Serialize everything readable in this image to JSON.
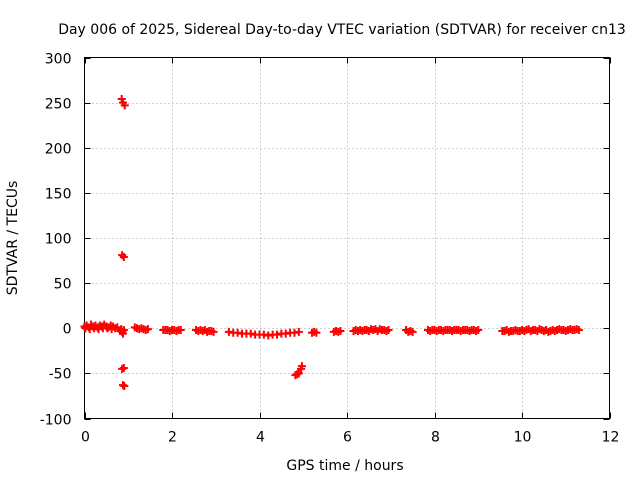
{
  "chart_data": {
    "type": "scatter",
    "title": "Day 006 of 2025, Sidereal Day-to-day VTEC variation (SDTVAR) for receiver cn13",
    "xlabel": "GPS time / hours",
    "ylabel": "SDTVAR / TECUs",
    "xlim": [
      0,
      12
    ],
    "ylim": [
      -100,
      300
    ],
    "xticks": [
      0,
      2,
      4,
      6,
      8,
      10,
      12
    ],
    "yticks": [
      -100,
      -50,
      0,
      50,
      100,
      150,
      200,
      250,
      300
    ],
    "grid": true,
    "marker": "plus",
    "series": [
      {
        "name": "SDTVAR",
        "color": "#ff0000",
        "points": [
          [
            0.0,
            2
          ],
          [
            0.05,
            3
          ],
          [
            0.1,
            1
          ],
          [
            0.15,
            4
          ],
          [
            0.2,
            2
          ],
          [
            0.25,
            3
          ],
          [
            0.3,
            1
          ],
          [
            0.35,
            3
          ],
          [
            0.4,
            2
          ],
          [
            0.45,
            4
          ],
          [
            0.5,
            2
          ],
          [
            0.55,
            1
          ],
          [
            0.6,
            3
          ],
          [
            0.65,
            2
          ],
          [
            0.7,
            0
          ],
          [
            0.75,
            1
          ],
          [
            0.02,
            0
          ],
          [
            0.12,
            -1
          ],
          [
            0.22,
            0
          ],
          [
            0.32,
            -1
          ],
          [
            0.42,
            0
          ],
          [
            0.52,
            0
          ],
          [
            0.62,
            -1
          ],
          [
            0.82,
            -3
          ],
          [
            0.86,
            -4
          ],
          [
            0.88,
            -6
          ],
          [
            0.84,
            -1
          ],
          [
            0.9,
            -2
          ],
          [
            0.85,
            254
          ],
          [
            0.88,
            250
          ],
          [
            0.92,
            247
          ],
          [
            0.86,
            81
          ],
          [
            0.9,
            79
          ],
          [
            0.86,
            -45
          ],
          [
            0.9,
            -44
          ],
          [
            0.88,
            -63
          ],
          [
            0.91,
            -64
          ],
          [
            1.15,
            1
          ],
          [
            1.2,
            0
          ],
          [
            1.25,
            -1
          ],
          [
            1.3,
            0
          ],
          [
            1.35,
            -1
          ],
          [
            1.4,
            -2
          ],
          [
            1.45,
            -1
          ],
          [
            1.8,
            -2
          ],
          [
            1.85,
            -2
          ],
          [
            1.9,
            -2
          ],
          [
            1.95,
            -3
          ],
          [
            2.0,
            -2
          ],
          [
            2.05,
            -2
          ],
          [
            2.1,
            -3
          ],
          [
            2.15,
            -2
          ],
          [
            2.2,
            -2
          ],
          [
            2.55,
            -2
          ],
          [
            2.6,
            -3
          ],
          [
            2.65,
            -2
          ],
          [
            2.7,
            -3
          ],
          [
            2.75,
            -2
          ],
          [
            2.8,
            -4
          ],
          [
            2.85,
            -3
          ],
          [
            2.9,
            -3
          ],
          [
            2.95,
            -4
          ],
          [
            3.3,
            -4
          ],
          [
            3.4,
            -5
          ],
          [
            3.5,
            -5
          ],
          [
            3.6,
            -6
          ],
          [
            3.7,
            -6
          ],
          [
            3.8,
            -6
          ],
          [
            3.9,
            -7
          ],
          [
            4.0,
            -7
          ],
          [
            4.1,
            -7
          ],
          [
            4.2,
            -8
          ],
          [
            4.3,
            -7
          ],
          [
            4.4,
            -7
          ],
          [
            4.5,
            -6
          ],
          [
            4.6,
            -6
          ],
          [
            4.7,
            -5
          ],
          [
            4.8,
            -5
          ],
          [
            4.9,
            -4
          ],
          [
            4.82,
            -52
          ],
          [
            4.86,
            -51
          ],
          [
            4.9,
            -50
          ],
          [
            4.95,
            -45
          ],
          [
            4.97,
            -42
          ],
          [
            5.2,
            -5
          ],
          [
            5.25,
            -4
          ],
          [
            5.3,
            -5
          ],
          [
            5.7,
            -4
          ],
          [
            5.75,
            -3
          ],
          [
            5.8,
            -4
          ],
          [
            5.85,
            -3
          ],
          [
            6.15,
            -3
          ],
          [
            6.2,
            -2
          ],
          [
            6.25,
            -3
          ],
          [
            6.3,
            -2
          ],
          [
            6.35,
            -3
          ],
          [
            6.4,
            -2
          ],
          [
            6.45,
            -2
          ],
          [
            6.5,
            -3
          ],
          [
            6.55,
            -1
          ],
          [
            6.6,
            -2
          ],
          [
            6.65,
            -1
          ],
          [
            6.7,
            -3
          ],
          [
            6.75,
            -1
          ],
          [
            6.8,
            -2
          ],
          [
            6.85,
            -2
          ],
          [
            6.9,
            -3
          ],
          [
            6.95,
            -2
          ],
          [
            7.35,
            -2
          ],
          [
            7.4,
            -4
          ],
          [
            7.45,
            -3
          ],
          [
            7.5,
            -4
          ],
          [
            7.85,
            -2
          ],
          [
            7.9,
            -3
          ],
          [
            7.95,
            -2
          ],
          [
            8.0,
            -2
          ],
          [
            8.05,
            -3
          ],
          [
            8.1,
            -2
          ],
          [
            8.15,
            -2
          ],
          [
            8.2,
            -3
          ],
          [
            8.25,
            -2
          ],
          [
            8.3,
            -2
          ],
          [
            8.35,
            -2
          ],
          [
            8.4,
            -3
          ],
          [
            8.45,
            -2
          ],
          [
            8.5,
            -2
          ],
          [
            8.55,
            -2
          ],
          [
            8.6,
            -3
          ],
          [
            8.65,
            -2
          ],
          [
            8.7,
            -2
          ],
          [
            8.75,
            -2
          ],
          [
            8.8,
            -3
          ],
          [
            8.85,
            -2
          ],
          [
            8.9,
            -2
          ],
          [
            8.95,
            -3
          ],
          [
            9.0,
            -2
          ],
          [
            9.55,
            -3
          ],
          [
            9.6,
            -3
          ],
          [
            9.65,
            -2
          ],
          [
            9.7,
            -4
          ],
          [
            9.75,
            -3
          ],
          [
            9.8,
            -3
          ],
          [
            9.85,
            -2
          ],
          [
            9.9,
            -3
          ],
          [
            9.95,
            -3
          ],
          [
            10.0,
            -2
          ],
          [
            10.05,
            -3
          ],
          [
            10.1,
            -2
          ],
          [
            10.15,
            -1
          ],
          [
            10.2,
            -3
          ],
          [
            10.25,
            -2
          ],
          [
            10.3,
            -2
          ],
          [
            10.35,
            -3
          ],
          [
            10.4,
            -1
          ],
          [
            10.45,
            -2
          ],
          [
            10.5,
            -3
          ],
          [
            10.55,
            -2
          ],
          [
            10.6,
            -4
          ],
          [
            10.65,
            -3
          ],
          [
            10.7,
            -2
          ],
          [
            10.75,
            -3
          ],
          [
            10.8,
            -2
          ],
          [
            10.85,
            -1
          ],
          [
            10.9,
            -2
          ],
          [
            10.95,
            -2
          ],
          [
            11.0,
            -3
          ],
          [
            11.05,
            -2
          ],
          [
            11.1,
            -1
          ],
          [
            11.15,
            -2
          ],
          [
            11.2,
            -2
          ],
          [
            11.25,
            -1
          ],
          [
            11.3,
            -2
          ]
        ]
      }
    ]
  }
}
